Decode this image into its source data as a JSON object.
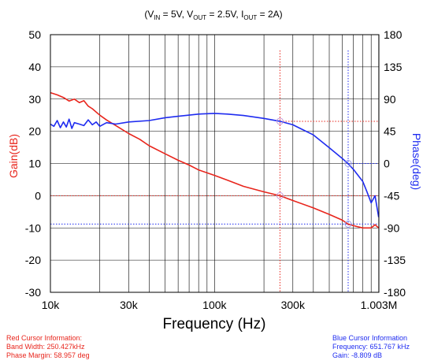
{
  "subtitle": {
    "open": "(V",
    "vin_sub": "IN",
    "vin_val": " = 5V, V",
    "vout_sub": "OUT",
    "vout_val": " = 2.5V, I",
    "iout_sub": "OUT",
    "iout_val": " = 2A)"
  },
  "cursor_info": {
    "red": {
      "title": "Red Cursor Information:",
      "line1": "Band Width: 250.427kHz",
      "line2": "Phase Margin: 58.957 deg"
    },
    "blue": {
      "title": "Blue Cursor Information",
      "line1": "Frequency: 651.767 kHz",
      "line2": "Gain: -8.809 dB"
    }
  },
  "colors": {
    "gain": "#e8251c",
    "phase": "#1f2cf0",
    "grid": "#000000",
    "background": "#ffffff"
  },
  "chart_data": {
    "type": "line",
    "xlabel": "Frequency (Hz)",
    "ylabel_left": "Gain(dB)",
    "ylabel_right": "Phase(deg)",
    "x_scale": "log",
    "xlim": [
      10000,
      1003000
    ],
    "ylim_left": [
      -30,
      50
    ],
    "ylim_right": [
      -180,
      180
    ],
    "x_ticks": [
      {
        "value": 10000,
        "label": "10k"
      },
      {
        "value": 30000,
        "label": "30k"
      },
      {
        "value": 100000,
        "label": "100k"
      },
      {
        "value": 300000,
        "label": "300k"
      },
      {
        "value": 1003000,
        "label": "1.003M"
      }
    ],
    "y_ticks_left": [
      50,
      40,
      30,
      20,
      10,
      0,
      -10,
      -20,
      -30
    ],
    "y_ticks_right": [
      180,
      135,
      90,
      45,
      0,
      -45,
      -90,
      -135,
      -180
    ],
    "grid": true,
    "series": [
      {
        "name": "Gain",
        "axis": "left",
        "x": [
          10000,
          11000,
          12000,
          13000,
          14000,
          15000,
          16000,
          17000,
          18000,
          20000,
          22000,
          25000,
          30000,
          35000,
          40000,
          50000,
          60000,
          70000,
          80000,
          100000,
          120000,
          150000,
          200000,
          250000,
          300000,
          400000,
          500000,
          600000,
          650000,
          700000,
          800000,
          900000,
          950000,
          1000000
        ],
        "values": [
          32,
          31.3,
          30.5,
          29.4,
          30.0,
          28.9,
          29.5,
          27.8,
          27.0,
          25.0,
          23.5,
          21.8,
          19.3,
          17.5,
          15.5,
          13.0,
          11.0,
          9.5,
          8.0,
          6.3,
          4.8,
          2.9,
          1.2,
          0.0,
          -1.5,
          -3.8,
          -5.8,
          -7.6,
          -8.8,
          -9.3,
          -10.0,
          -10.0,
          -9.0,
          -10.0
        ]
      },
      {
        "name": "Phase",
        "axis": "right",
        "x": [
          10000,
          10500,
          11000,
          11500,
          12000,
          12500,
          13000,
          13500,
          14000,
          15000,
          16000,
          17000,
          18000,
          19000,
          20000,
          22000,
          25000,
          30000,
          40000,
          50000,
          60000,
          80000,
          100000,
          120000,
          150000,
          200000,
          250000,
          300000,
          400000,
          500000,
          600000,
          650000,
          700000,
          800000,
          850000,
          900000,
          950000,
          1000000
        ],
        "values": [
          55,
          52,
          60,
          50,
          58,
          51,
          62,
          49,
          57,
          55,
          53,
          61,
          54,
          58,
          52,
          57,
          55,
          58,
          60,
          64,
          66,
          69,
          70,
          69,
          67,
          63,
          59,
          54,
          40,
          22,
          7,
          0,
          -8,
          -25,
          -40,
          -55,
          -45,
          -75
        ]
      }
    ],
    "cursors": [
      {
        "name": "Red Cursor",
        "frequency": 250427,
        "gain": 0,
        "phase": 58.957
      },
      {
        "name": "Blue Cursor",
        "frequency": 651767,
        "gain": -8.809,
        "phase": 0
      }
    ]
  }
}
